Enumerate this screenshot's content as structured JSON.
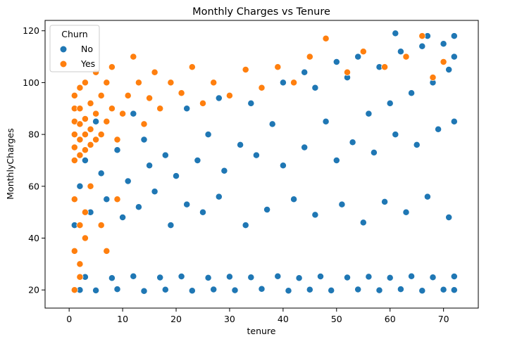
{
  "chart_data": {
    "type": "scatter",
    "title": "Monthly Charges vs Tenure",
    "xlabel": "tenure",
    "ylabel": "MonthlyCharges",
    "xlim": [
      -4.5,
      76.5
    ],
    "ylim": [
      13,
      124
    ],
    "xticks": [
      0,
      10,
      20,
      30,
      40,
      50,
      60,
      70
    ],
    "yticks": [
      20,
      40,
      60,
      80,
      100,
      120
    ],
    "grid": false,
    "legend": {
      "title": "Churn",
      "placement": "top-left"
    },
    "series": [
      {
        "name": "No",
        "color": "#1f77b4",
        "points": [
          [
            2,
            20
          ],
          [
            5,
            19.8
          ],
          [
            9,
            20.3
          ],
          [
            14,
            19.6
          ],
          [
            18,
            20.1
          ],
          [
            23,
            19.7
          ],
          [
            27,
            20.2
          ],
          [
            31,
            19.9
          ],
          [
            36,
            20.4
          ],
          [
            41,
            19.7
          ],
          [
            45,
            20.1
          ],
          [
            49,
            19.8
          ],
          [
            54,
            20.2
          ],
          [
            58,
            19.9
          ],
          [
            62,
            20.3
          ],
          [
            66,
            19.7
          ],
          [
            70,
            20.1
          ],
          [
            72,
            20
          ],
          [
            3,
            25
          ],
          [
            8,
            24.6
          ],
          [
            12,
            25.3
          ],
          [
            17,
            24.8
          ],
          [
            21,
            25.2
          ],
          [
            26,
            24.7
          ],
          [
            30,
            25.1
          ],
          [
            34,
            24.9
          ],
          [
            39,
            25.3
          ],
          [
            43,
            24.6
          ],
          [
            47,
            25.2
          ],
          [
            52,
            24.8
          ],
          [
            56,
            25.1
          ],
          [
            60,
            24.7
          ],
          [
            64,
            25.3
          ],
          [
            68,
            24.9
          ],
          [
            72,
            25.2
          ],
          [
            1,
            45
          ],
          [
            4,
            50
          ],
          [
            7,
            55
          ],
          [
            10,
            48
          ],
          [
            13,
            52
          ],
          [
            16,
            58
          ],
          [
            19,
            45
          ],
          [
            22,
            53
          ],
          [
            25,
            50
          ],
          [
            28,
            56
          ],
          [
            33,
            45
          ],
          [
            37,
            51
          ],
          [
            42,
            55
          ],
          [
            46,
            49
          ],
          [
            51,
            53
          ],
          [
            55,
            46
          ],
          [
            59,
            54
          ],
          [
            63,
            50
          ],
          [
            67,
            56
          ],
          [
            71,
            48
          ],
          [
            2,
            60
          ],
          [
            6,
            65
          ],
          [
            11,
            62
          ],
          [
            15,
            68
          ],
          [
            20,
            64
          ],
          [
            24,
            70
          ],
          [
            29,
            66
          ],
          [
            35,
            72
          ],
          [
            40,
            68
          ],
          [
            44,
            75
          ],
          [
            50,
            70
          ],
          [
            53,
            77
          ],
          [
            57,
            73
          ],
          [
            61,
            80
          ],
          [
            65,
            76
          ],
          [
            69,
            82
          ],
          [
            72,
            85
          ],
          [
            3,
            70
          ],
          [
            9,
            74
          ],
          [
            14,
            78
          ],
          [
            18,
            72
          ],
          [
            26,
            80
          ],
          [
            32,
            76
          ],
          [
            38,
            84
          ],
          [
            48,
            85
          ],
          [
            56,
            88
          ],
          [
            60,
            92
          ],
          [
            64,
            96
          ],
          [
            68,
            100
          ],
          [
            71,
            105
          ],
          [
            72,
            110
          ],
          [
            70,
            115
          ],
          [
            67,
            118
          ],
          [
            62,
            112
          ],
          [
            58,
            106
          ],
          [
            52,
            102
          ],
          [
            46,
            98
          ],
          [
            5,
            85
          ],
          [
            12,
            88
          ],
          [
            22,
            90
          ],
          [
            28,
            94
          ],
          [
            34,
            92
          ],
          [
            40,
            100
          ],
          [
            44,
            104
          ],
          [
            50,
            108
          ],
          [
            54,
            110
          ],
          [
            61,
            119
          ],
          [
            66,
            114
          ],
          [
            72,
            118
          ]
        ]
      },
      {
        "name": "Yes",
        "color": "#ff7f0e",
        "points": [
          [
            1,
            70
          ],
          [
            1,
            75
          ],
          [
            1,
            80
          ],
          [
            1,
            85
          ],
          [
            1,
            90
          ],
          [
            1,
            95
          ],
          [
            2,
            72
          ],
          [
            2,
            78
          ],
          [
            2,
            84
          ],
          [
            2,
            90
          ],
          [
            2,
            98
          ],
          [
            3,
            74
          ],
          [
            3,
            80
          ],
          [
            3,
            86
          ],
          [
            3,
            100
          ],
          [
            4,
            76
          ],
          [
            4,
            82
          ],
          [
            4,
            92
          ],
          [
            5,
            78
          ],
          [
            5,
            88
          ],
          [
            5,
            104
          ],
          [
            6,
            80
          ],
          [
            6,
            95
          ],
          [
            7,
            85
          ],
          [
            7,
            100
          ],
          [
            8,
            90
          ],
          [
            8,
            106
          ],
          [
            9,
            78
          ],
          [
            10,
            88
          ],
          [
            11,
            95
          ],
          [
            12,
            110
          ],
          [
            13,
            100
          ],
          [
            14,
            84
          ],
          [
            15,
            94
          ],
          [
            16,
            104
          ],
          [
            17,
            90
          ],
          [
            19,
            100
          ],
          [
            21,
            96
          ],
          [
            23,
            106
          ],
          [
            25,
            92
          ],
          [
            27,
            100
          ],
          [
            30,
            95
          ],
          [
            33,
            105
          ],
          [
            36,
            98
          ],
          [
            39,
            106
          ],
          [
            42,
            100
          ],
          [
            45,
            110
          ],
          [
            48,
            117
          ],
          [
            52,
            104
          ],
          [
            55,
            112
          ],
          [
            59,
            106
          ],
          [
            63,
            110
          ],
          [
            66,
            118
          ],
          [
            68,
            102
          ],
          [
            70,
            108
          ],
          [
            1,
            20
          ],
          [
            2,
            25
          ],
          [
            1,
            35
          ],
          [
            2,
            45
          ],
          [
            3,
            50
          ],
          [
            1,
            55
          ],
          [
            2,
            30
          ],
          [
            4,
            60
          ],
          [
            6,
            45
          ],
          [
            9,
            55
          ],
          [
            3,
            40
          ],
          [
            7,
            35
          ]
        ]
      }
    ]
  }
}
